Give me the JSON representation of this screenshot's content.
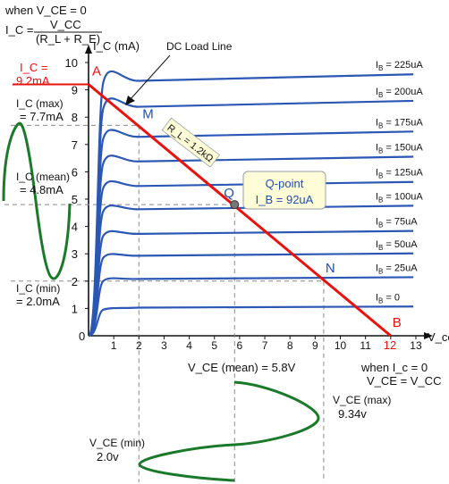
{
  "chart_data": {
    "type": "line",
    "title": "",
    "xlabel": "V_ce",
    "ylabel": "I_C (mA)",
    "xlim": [
      0,
      13
    ],
    "ylim": [
      0,
      10
    ],
    "x_ticks": [
      "0",
      "1",
      "2",
      "3",
      "4",
      "5",
      "6",
      "7",
      "8",
      "9",
      "10",
      "11",
      "12",
      "13"
    ],
    "y_ticks": [
      "1",
      "2",
      "3",
      "4",
      "5",
      "6",
      "7",
      "8",
      "9",
      "10"
    ],
    "origin_label": "0",
    "grid": false,
    "colors": {
      "curves": "#2b57b5",
      "load_line": "#e8130f",
      "waveform": "#1a7a2a",
      "guides": "#888888",
      "callout_fill": "#fffcd8"
    },
    "series": [
      {
        "name": "I_B = 0",
        "ib_label": "0",
        "sat": 0.95
      },
      {
        "name": "I_B = 25uA",
        "ib_label": "25uA",
        "sat": 2.0
      },
      {
        "name": "I_B = 50uA",
        "ib_label": "50uA",
        "sat": 2.85
      },
      {
        "name": "I_B = 75uA",
        "ib_label": "75uA",
        "sat": 3.65
      },
      {
        "name": "I_B = 100uA",
        "ib_label": "100uA",
        "sat": 4.55
      },
      {
        "name": "I_B = 125uA",
        "ib_label": "125uA",
        "sat": 5.4
      },
      {
        "name": "I_B = 150uA",
        "ib_label": "150uA",
        "sat": 6.3
      },
      {
        "name": "I_B = 175uA",
        "ib_label": "175uA",
        "sat": 7.2
      },
      {
        "name": "I_B = 200uA",
        "ib_label": "200uA",
        "sat": 8.3
      },
      {
        "name": "I_B = 225uA",
        "ib_label": "225uA",
        "sat": 9.25
      }
    ],
    "load_line": {
      "label": "DC Load Line",
      "x": [
        0,
        12
      ],
      "y": [
        9.2,
        0
      ],
      "rl_label": "R_L = 1.2kΩ"
    },
    "points": [
      {
        "label": "A",
        "x": 0,
        "y": 9.2
      },
      {
        "label": "M",
        "x": 2.0,
        "y": 7.7
      },
      {
        "label": "Q",
        "x": 5.8,
        "y": 4.8
      },
      {
        "label": "N",
        "x": 9.34,
        "y": 2.0
      },
      {
        "label": "B",
        "x": 12,
        "y": 0
      }
    ],
    "q_callout": {
      "title": "Q-point",
      "sub": "I_B = 92uA"
    },
    "annotations": {
      "top_line1": "when V_CE = 0",
      "top_ic": "I_C =",
      "top_num": "V_CC",
      "top_den": "(R_L + R_E)",
      "ic_sat_1": "I_C =",
      "ic_sat_2": "9.2mA",
      "ic_max_1": "I_C (max)",
      "ic_max_2": "= 7.7mA",
      "ic_mean_1": "I_C (mean)",
      "ic_mean_2": "= 4.8mA",
      "ic_min_1": "I_C (min)",
      "ic_min_2": "= 2.0mA",
      "b_tick": "12",
      "vce_mean": "V_CE (mean) = 5.8V",
      "vce_max_1": "V_CE (max)",
      "vce_max_2": "9.34v",
      "vce_min_1": "V_CE (min)",
      "vce_min_2": "2.0v",
      "cut_1": "when I_c = 0",
      "cut_2": "V_CE = V_CC"
    }
  }
}
